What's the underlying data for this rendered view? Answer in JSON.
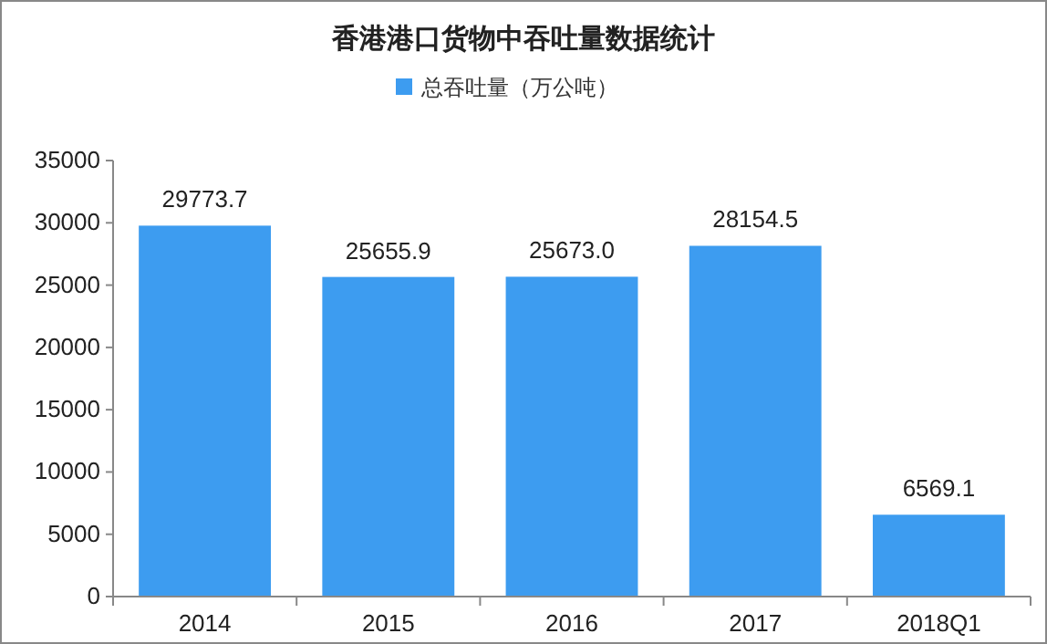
{
  "chart_data": {
    "type": "bar",
    "title": "香港港口货物中吞吐量数据统计",
    "categories": [
      "2014",
      "2015",
      "2016",
      "2017",
      "2018Q1"
    ],
    "series": [
      {
        "name": "总吞吐量（万公吨）",
        "color": "#3d9cf0",
        "values": [
          29773.7,
          25655.9,
          25673,
          28154.5,
          6569.1
        ],
        "value_labels": [
          "29773.7",
          "25655.9",
          "25673.0",
          "28154.5",
          "6569.1"
        ]
      }
    ],
    "ylim": [
      0,
      35000
    ],
    "yticks": [
      0,
      5000,
      10000,
      15000,
      20000,
      25000,
      30000,
      35000
    ],
    "legend": "top",
    "grid": false
  }
}
